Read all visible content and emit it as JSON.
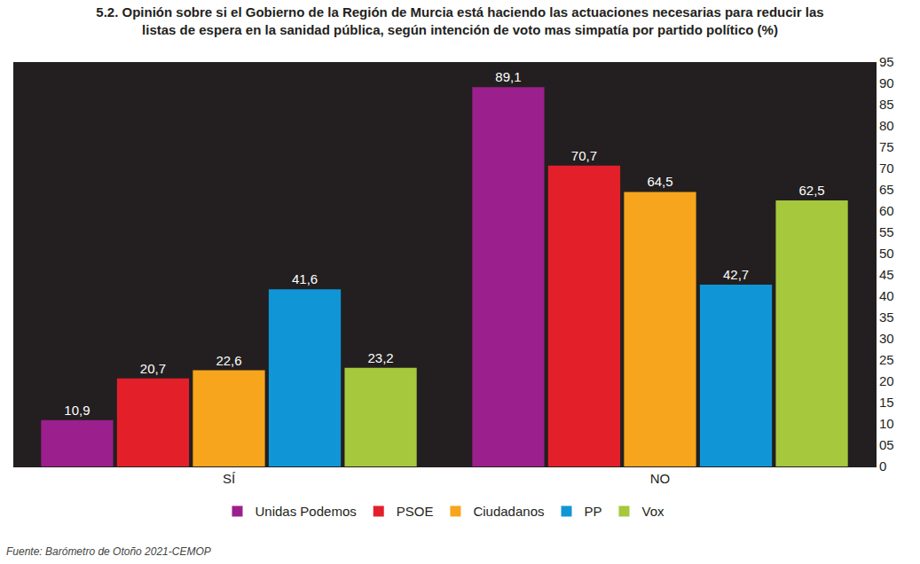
{
  "chart_data": {
    "type": "bar",
    "title": "5.2. Opinión sobre si el Gobierno de la Región de Murcia está haciendo las actuaciones necesarias para reducir las listas de espera en la sanidad pública, según intención de voto mas simpatía por partido político (%)",
    "categories": [
      "SÍ",
      "NO"
    ],
    "series": [
      {
        "name": "Unidas Podemos",
        "color": "#9b1f8c",
        "values": [
          10.9,
          89.1
        ],
        "value_labels": [
          "10,9",
          "89,1"
        ]
      },
      {
        "name": "PSOE",
        "color": "#e3202a",
        "values": [
          20.7,
          70.7
        ],
        "value_labels": [
          "20,7",
          "70,7"
        ]
      },
      {
        "name": "Ciudadanos",
        "color": "#f7a51c",
        "values": [
          22.6,
          64.5
        ],
        "value_labels": [
          "22,6",
          "64,5"
        ]
      },
      {
        "name": "PP",
        "color": "#1096d6",
        "values": [
          41.6,
          42.7
        ],
        "value_labels": [
          "41,6",
          "42,7"
        ]
      },
      {
        "name": "Vox",
        "color": "#a6c83c",
        "values": [
          23.2,
          62.5
        ],
        "value_labels": [
          "23,2",
          "62,5"
        ]
      }
    ],
    "ylim": [
      0,
      95
    ],
    "yticks": [
      0,
      {
        "value": 5,
        "label": "05"
      },
      10,
      15,
      20,
      25,
      30,
      35,
      40,
      45,
      50,
      55,
      60,
      65,
      70,
      75,
      80,
      85,
      90,
      95
    ],
    "grid": false,
    "data_labels": true,
    "legend": "bottom",
    "annotations": [
      "Fuente: Barómetro de Otoño 2021-CEMOP"
    ]
  }
}
